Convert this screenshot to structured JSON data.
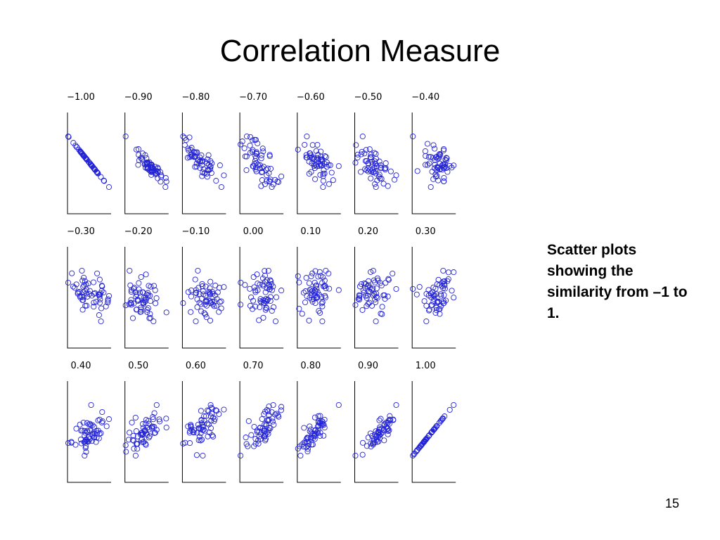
{
  "slide": {
    "title": "Correlation Measure",
    "caption": "Scatter plots showing the similarity from –1 to 1.",
    "page_number": "15"
  },
  "colors": {
    "marker": "#2323d6",
    "axis": "#000000",
    "text": "#000000"
  },
  "chart_data": {
    "type": "scatter",
    "layout": "small-multiples grid, 3 rows x 7 columns",
    "panel_titles": [
      "−1.00",
      "−0.90",
      "−0.80",
      "−0.70",
      "−0.60",
      "−0.50",
      "−0.40",
      "−0.30",
      "−0.20",
      "−0.10",
      "0.00",
      "0.10",
      "0.20",
      "0.30",
      "0.40",
      "0.50",
      "0.60",
      "0.70",
      "0.80",
      "0.90",
      "1.00"
    ],
    "correlations": [
      -1.0,
      -0.9,
      -0.8,
      -0.7,
      -0.6,
      -0.5,
      -0.4,
      -0.3,
      -0.2,
      -0.1,
      0.0,
      0.1,
      0.2,
      0.3,
      0.4,
      0.5,
      0.6,
      0.7,
      0.8,
      0.9,
      1.0
    ],
    "points_per_panel": 60,
    "marker": "open circle",
    "axes": "left and bottom lines only, no ticks",
    "grid": false,
    "legend": false
  }
}
